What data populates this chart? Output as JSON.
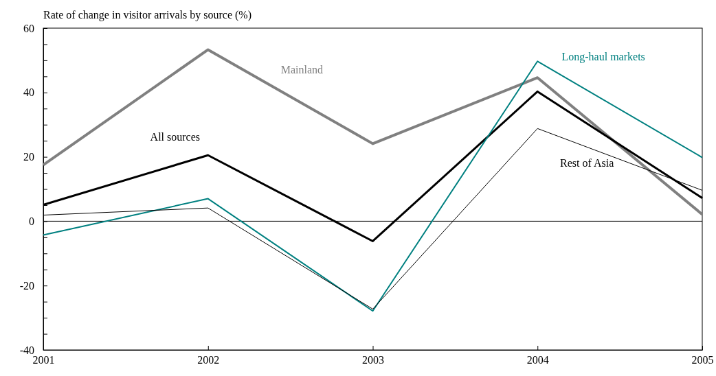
{
  "chart_data": {
    "type": "line",
    "ylabel": "Rate of change in visitor arrivals by source (%)",
    "x": [
      2001,
      2002,
      2003,
      2004,
      2005
    ],
    "series": [
      {
        "name": "Mainland",
        "color": "#808080",
        "values": [
          17.5,
          53.3,
          24.1,
          44.6,
          2.1
        ]
      },
      {
        "name": "All sources",
        "color": "#000000",
        "values": [
          5.1,
          20.5,
          -6.2,
          40.3,
          7.2
        ]
      },
      {
        "name": "Long-haul markets",
        "color": "#008080",
        "values": [
          -4.3,
          7.0,
          -27.9,
          49.7,
          19.8
        ]
      },
      {
        "name": "Rest of Asia",
        "color": "#000000",
        "values": [
          1.9,
          4.1,
          -27.3,
          28.8,
          9.6
        ]
      }
    ],
    "xlim": [
      2001,
      2005
    ],
    "xticks": [
      2001,
      2002,
      2003,
      2004,
      2005
    ],
    "ylim": [
      -40,
      60
    ],
    "yticks": [
      -40,
      {
        "value": -35,
        "label": null
      },
      {
        "value": -30,
        "label": null
      },
      {
        "value": -25,
        "label": null
      },
      -20,
      {
        "value": -15,
        "label": null
      },
      {
        "value": -10,
        "label": null
      },
      {
        "value": -5,
        "label": null
      },
      0,
      {
        "value": 5,
        "label": null
      },
      {
        "value": 10,
        "label": null
      },
      {
        "value": 15,
        "label": null
      },
      20,
      {
        "value": 25,
        "label": null
      },
      {
        "value": 30,
        "label": null
      },
      {
        "value": 35,
        "label": null
      },
      40,
      {
        "value": 45,
        "label": null
      },
      {
        "value": 50,
        "label": null
      },
      {
        "value": 55,
        "label": null
      },
      60
    ],
    "ref_lines": [
      {
        "axis": "y",
        "value": 0,
        "color": "#000000"
      }
    ],
    "grid": false,
    "legend": false,
    "marker": "none",
    "line_style": "solid"
  }
}
